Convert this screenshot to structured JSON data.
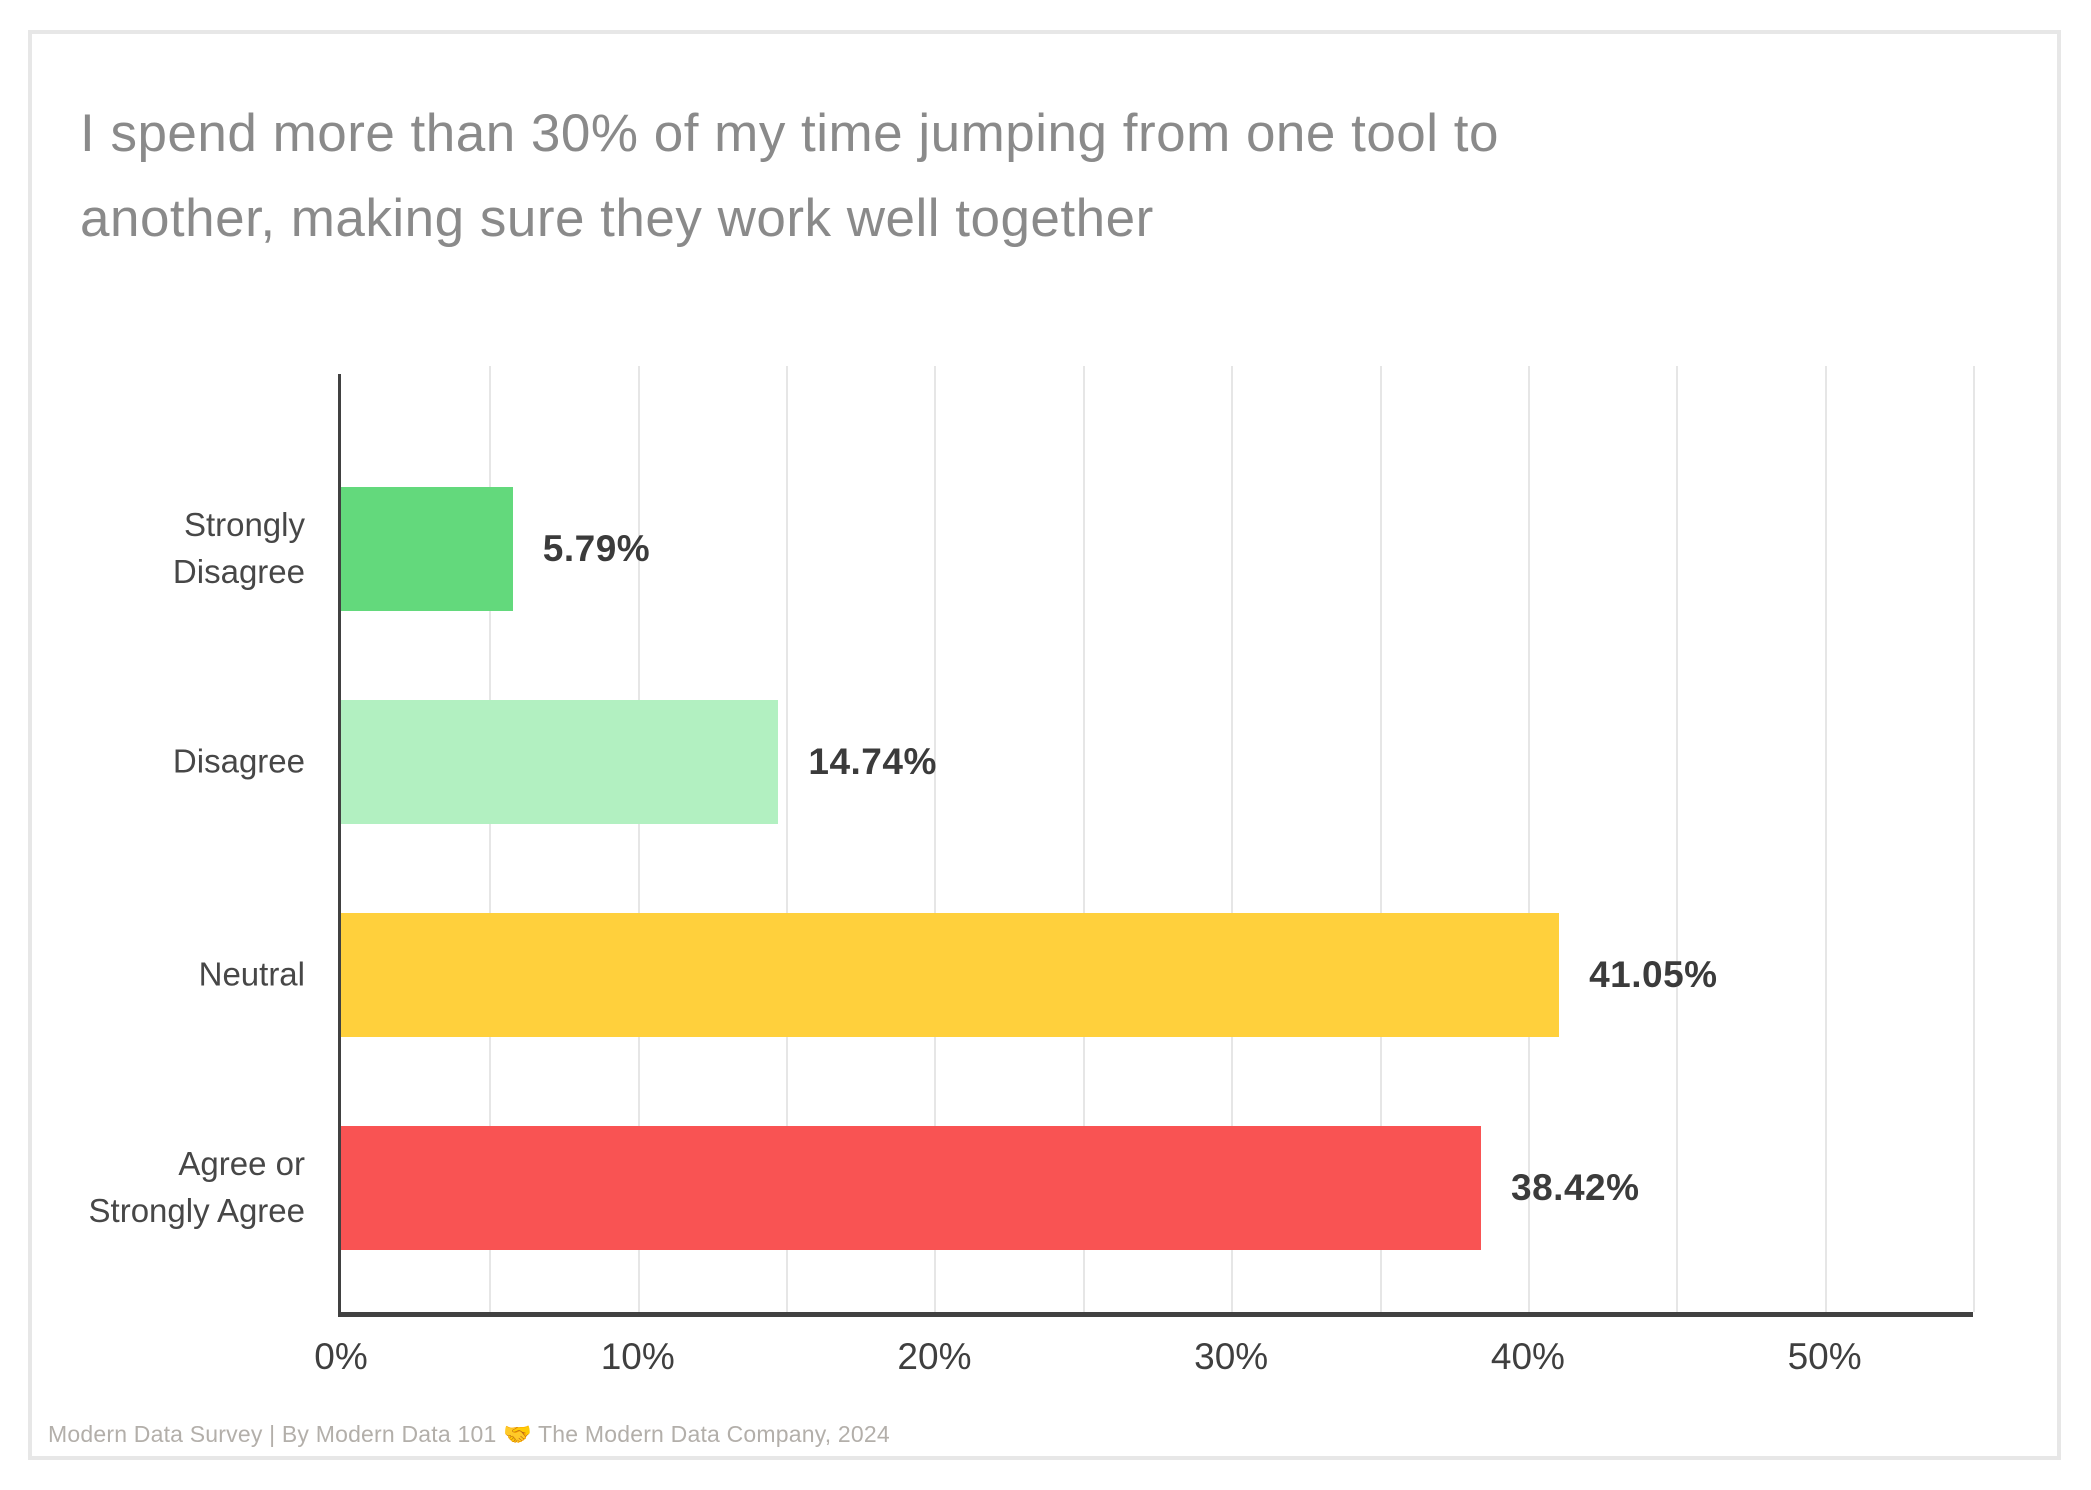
{
  "card": {
    "title_lines": [
      "I spend more than 30% of my time jumping from one tool to",
      "another, making sure they work well together"
    ],
    "footer_text": "Modern Data Survey | By Modern Data 101 🤝 The Modern Data Company, 2024"
  },
  "chart_data": {
    "type": "bar",
    "orientation": "horizontal",
    "title": "I spend more than 30% of my time jumping from one tool to another, making sure they work well together",
    "categories": [
      "Strongly Disagree",
      "Disagree",
      "Neutral",
      "Agree or Strongly Agree"
    ],
    "values": [
      5.79,
      14.74,
      41.05,
      38.42
    ],
    "value_labels": [
      "5.79%",
      "14.74%",
      "41.05%",
      "38.42%"
    ],
    "bar_colors": [
      "#63d97c",
      "#b2f0c1",
      "#ffd03c",
      "#f95353"
    ],
    "x_tick_values": [
      0,
      10,
      20,
      30,
      40,
      50
    ],
    "x_tick_labels": [
      "0%",
      "10%",
      "20%",
      "30%",
      "40%",
      "50%"
    ],
    "xlim": [
      0,
      55
    ],
    "gridline_step": 5,
    "grid": true,
    "legend": false,
    "xlabel": "",
    "ylabel": ""
  },
  "colors": {
    "card_border": "#e7e7e7",
    "title": "#8a8a8a",
    "axis": "#414141",
    "grid": "#e6e6e6",
    "category_label": "#474747",
    "value_label": "#3b3b3b",
    "tick_label": "#3f3f3f",
    "footer": "#b3afaa"
  }
}
